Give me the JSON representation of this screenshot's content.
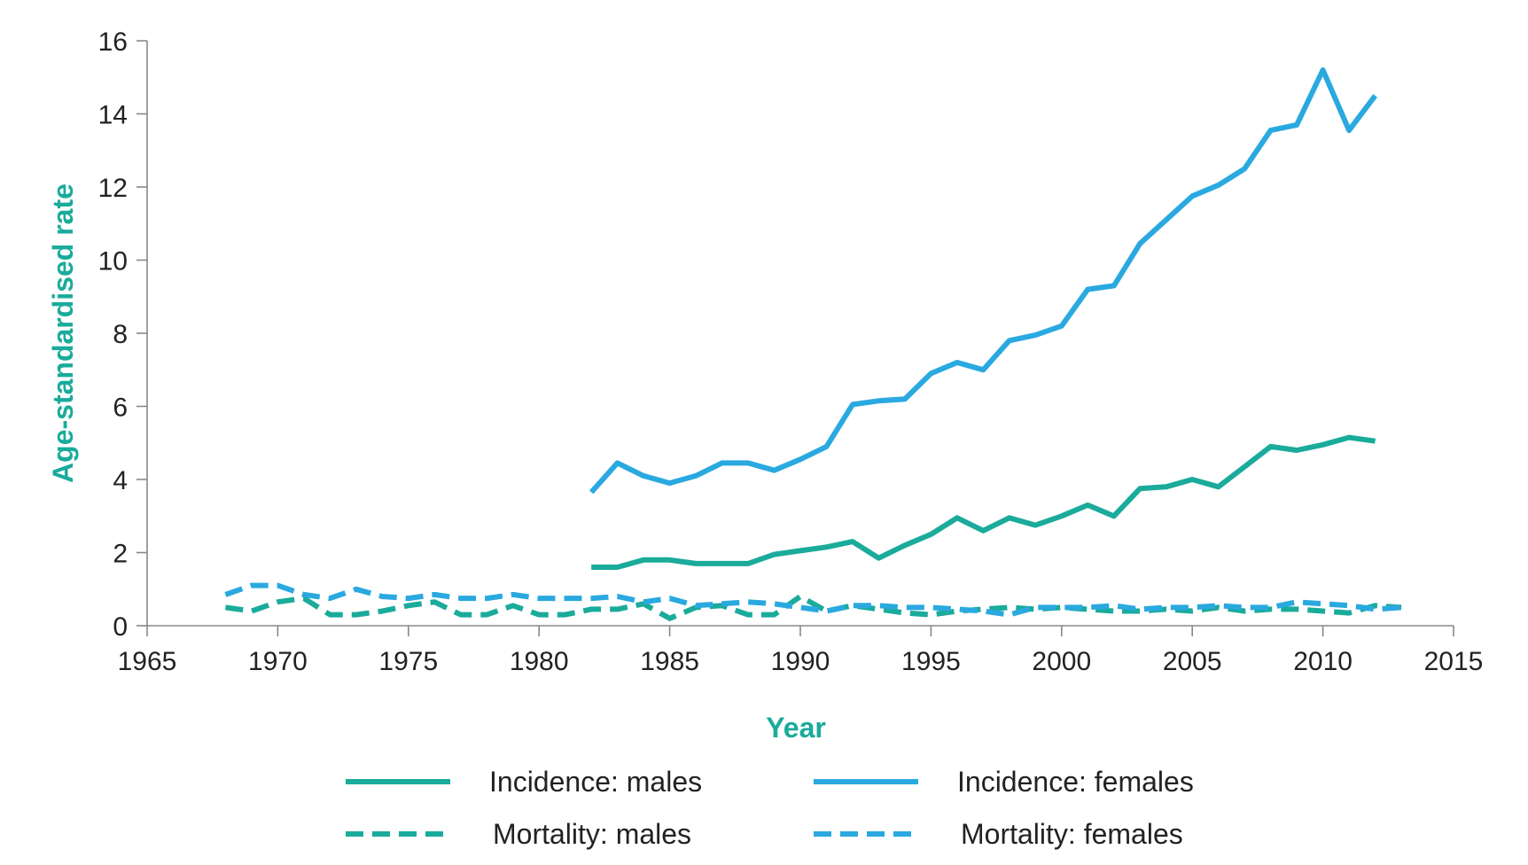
{
  "chart_data": {
    "type": "line",
    "title": "",
    "xlabel": "Year",
    "ylabel": "Age-standardised rate",
    "xlim": [
      1965,
      2015
    ],
    "ylim": [
      0,
      16
    ],
    "x_ticks": [
      "1965",
      "1970",
      "1975",
      "1980",
      "1985",
      "1990",
      "1995",
      "2000",
      "2005",
      "2010",
      "2015"
    ],
    "y_ticks": [
      "0",
      "2",
      "4",
      "6",
      "8",
      "10",
      "12",
      "14",
      "16"
    ],
    "grid": false,
    "legend_position": "bottom",
    "axis_title_color": "#1aab9b",
    "series": [
      {
        "name": "Incidence: males",
        "color": "#1aab9b",
        "dash": false,
        "x": [
          1982,
          1983,
          1984,
          1985,
          1986,
          1987,
          1988,
          1989,
          1990,
          1991,
          1992,
          1993,
          1994,
          1995,
          1996,
          1997,
          1998,
          1999,
          2000,
          2001,
          2002,
          2003,
          2004,
          2005,
          2006,
          2007,
          2008,
          2009,
          2010,
          2011,
          2012
        ],
        "y": [
          1.6,
          1.6,
          1.8,
          1.8,
          1.7,
          1.7,
          1.7,
          1.95,
          2.05,
          2.15,
          2.3,
          1.85,
          2.2,
          2.5,
          2.95,
          2.6,
          2.95,
          2.75,
          3.0,
          3.3,
          3.0,
          3.75,
          3.8,
          4.0,
          3.8,
          4.35,
          4.9,
          4.8,
          4.95,
          5.15,
          5.05
        ]
      },
      {
        "name": "Incidence: females",
        "color": "#2aa9e0",
        "dash": false,
        "x": [
          1982,
          1983,
          1984,
          1985,
          1986,
          1987,
          1988,
          1989,
          1990,
          1991,
          1992,
          1993,
          1994,
          1995,
          1996,
          1997,
          1998,
          1999,
          2000,
          2001,
          2002,
          2003,
          2004,
          2005,
          2006,
          2007,
          2008,
          2009,
          2010,
          2011,
          2012
        ],
        "y": [
          3.65,
          4.45,
          4.1,
          3.9,
          4.1,
          4.45,
          4.45,
          4.25,
          4.55,
          4.9,
          6.05,
          6.15,
          6.2,
          6.9,
          7.2,
          7.0,
          7.8,
          7.95,
          8.2,
          9.2,
          9.3,
          10.45,
          11.1,
          11.75,
          12.05,
          12.5,
          13.55,
          13.7,
          15.2,
          13.55,
          14.5
        ]
      },
      {
        "name": "Mortality: males",
        "color": "#1aab9b",
        "dash": true,
        "x": [
          1968,
          1969,
          1970,
          1971,
          1972,
          1973,
          1974,
          1975,
          1976,
          1977,
          1978,
          1979,
          1980,
          1981,
          1982,
          1983,
          1984,
          1985,
          1986,
          1987,
          1988,
          1989,
          1990,
          1991,
          1992,
          1993,
          1994,
          1995,
          1996,
          1997,
          1998,
          1999,
          2000,
          2001,
          2002,
          2003,
          2004,
          2005,
          2006,
          2007,
          2008,
          2009,
          2010,
          2011,
          2012,
          2013
        ],
        "y": [
          0.5,
          0.4,
          0.65,
          0.75,
          0.3,
          0.3,
          0.4,
          0.55,
          0.65,
          0.3,
          0.3,
          0.55,
          0.3,
          0.3,
          0.45,
          0.45,
          0.6,
          0.2,
          0.5,
          0.55,
          0.3,
          0.3,
          0.8,
          0.4,
          0.55,
          0.45,
          0.35,
          0.3,
          0.4,
          0.45,
          0.5,
          0.45,
          0.5,
          0.45,
          0.4,
          0.4,
          0.45,
          0.4,
          0.5,
          0.4,
          0.45,
          0.45,
          0.4,
          0.35,
          0.55,
          0.5
        ]
      },
      {
        "name": "Mortality: females",
        "color": "#2aa9e0",
        "dash": true,
        "x": [
          1968,
          1969,
          1970,
          1971,
          1972,
          1973,
          1974,
          1975,
          1976,
          1977,
          1978,
          1979,
          1980,
          1981,
          1982,
          1983,
          1984,
          1985,
          1986,
          1987,
          1988,
          1989,
          1990,
          1991,
          1992,
          1993,
          1994,
          1995,
          1996,
          1997,
          1998,
          1999,
          2000,
          2001,
          2002,
          2003,
          2004,
          2005,
          2006,
          2007,
          2008,
          2009,
          2010,
          2011,
          2012,
          2013
        ],
        "y": [
          0.85,
          1.1,
          1.1,
          0.85,
          0.75,
          1.0,
          0.8,
          0.75,
          0.85,
          0.75,
          0.75,
          0.85,
          0.75,
          0.75,
          0.75,
          0.8,
          0.65,
          0.75,
          0.55,
          0.6,
          0.65,
          0.6,
          0.5,
          0.4,
          0.55,
          0.55,
          0.5,
          0.5,
          0.45,
          0.4,
          0.3,
          0.5,
          0.5,
          0.5,
          0.55,
          0.45,
          0.5,
          0.5,
          0.55,
          0.5,
          0.5,
          0.65,
          0.6,
          0.55,
          0.45,
          0.5
        ]
      }
    ]
  }
}
